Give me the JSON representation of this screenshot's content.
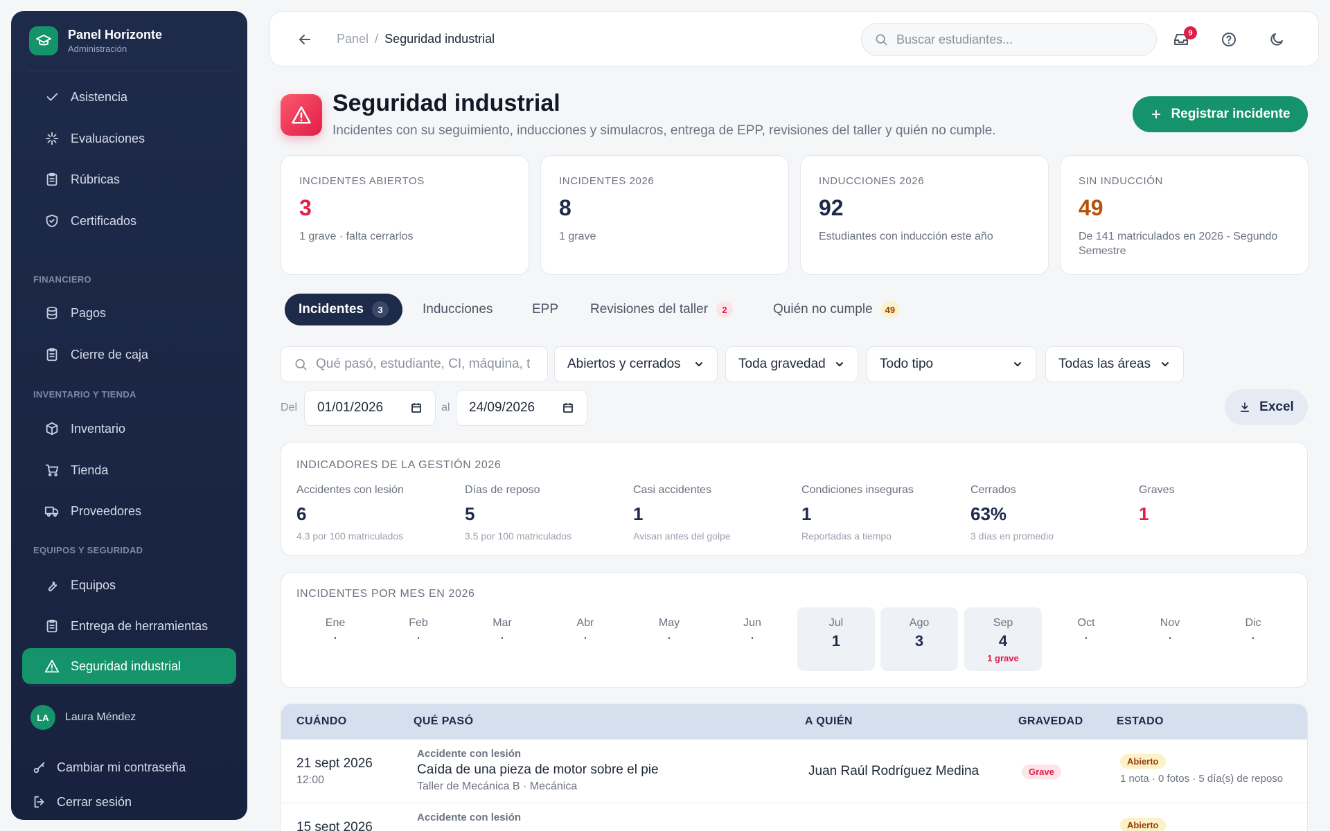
{
  "sidebar": {
    "brand_title": "Panel Horizonte",
    "brand_sub": "Administración",
    "items": [
      {
        "label": "Asistencia",
        "icon": "check-icon"
      },
      {
        "label": "Evaluaciones",
        "icon": "sparkle-icon"
      },
      {
        "label": "Rúbricas",
        "icon": "clipboard-icon"
      },
      {
        "label": "Certificados",
        "icon": "shield-check-icon"
      },
      {
        "label": "Pagos",
        "icon": "database-icon"
      },
      {
        "label": "Cierre de caja",
        "icon": "clipboard-icon"
      },
      {
        "label": "Inventario",
        "icon": "box-icon"
      },
      {
        "label": "Tienda",
        "icon": "cart-icon"
      },
      {
        "label": "Proveedores",
        "icon": "truck-icon"
      },
      {
        "label": "Equipos",
        "icon": "wrench-icon"
      },
      {
        "label": "Entrega de herramientas",
        "icon": "clipboard-icon"
      },
      {
        "label": "Seguridad industrial",
        "icon": "warning-icon"
      }
    ],
    "sections": [
      "FINANCIERO",
      "INVENTARIO Y TIENDA",
      "EQUIPOS Y SEGURIDAD"
    ],
    "user": {
      "initials": "LA",
      "name": "Laura Méndez"
    },
    "change_password": "Cambiar mi contraseña",
    "logout": "Cerrar sesión"
  },
  "topbar": {
    "breadcrumb_parent": "Panel",
    "breadcrumb_sep": "/",
    "breadcrumb_current": "Seguridad industrial",
    "search_placeholder": "Buscar estudiantes...",
    "notifications": "9"
  },
  "header": {
    "title": "Seguridad industrial",
    "subtitle": "Incidentes con su seguimiento, inducciones y simulacros, entrega de EPP, revisiones del taller y quién no cumple.",
    "primary_button": "Registrar incidente"
  },
  "stats": [
    {
      "label": "INCIDENTES ABIERTOS",
      "value": "3",
      "note": "1 grave · falta cerrarlos",
      "color": "#e11d48"
    },
    {
      "label": "INCIDENTES 2026",
      "value": "8",
      "note": "1 grave",
      "color": "#1e2a4a"
    },
    {
      "label": "INDUCCIONES 2026",
      "value": "92",
      "note": "Estudiantes con inducción este año",
      "color": "#1e2a4a"
    },
    {
      "label": "SIN INDUCCIÓN",
      "value": "49",
      "note": "De 141 matriculados en 2026 - Segundo Semestre",
      "color": "#b45309"
    }
  ],
  "tabs": [
    {
      "label": "Incidentes",
      "count": "3"
    },
    {
      "label": "Inducciones",
      "count": ""
    },
    {
      "label": "EPP",
      "count": ""
    },
    {
      "label": "Revisiones del taller",
      "count": "2"
    },
    {
      "label": "Quién no cumple",
      "count": "49"
    }
  ],
  "filters": {
    "search_placeholder": "Qué pasó, estudiante, CI, máquina, t",
    "status": "Abiertos y cerrados",
    "severity": "Toda gravedad",
    "type": "Todo tipo",
    "area": "Todas las áreas",
    "from_label": "Del",
    "from_date": "01/01/2026",
    "to_label": "al",
    "to_date": "24/09/2026",
    "export": "Excel"
  },
  "indicators": {
    "title": "INDICADORES DE LA GESTIÓN 2026",
    "items": [
      {
        "label": "Accidentes con lesión",
        "value": "6",
        "note": "4.3 por 100 matriculados"
      },
      {
        "label": "Días de reposo",
        "value": "5",
        "note": "3.5 por 100 matriculados"
      },
      {
        "label": "Casi accidentes",
        "value": "1",
        "note": "Avisan antes del golpe"
      },
      {
        "label": "Condiciones inseguras",
        "value": "1",
        "note": "Reportadas a tiempo"
      },
      {
        "label": "Cerrados",
        "value": "63%",
        "note": "3 días en promedio"
      },
      {
        "label": "Graves",
        "value": "1",
        "note": ""
      }
    ]
  },
  "monthly": {
    "title": "INCIDENTES POR MES EN 2026",
    "months": [
      {
        "name": "Ene",
        "value": "·",
        "note": ""
      },
      {
        "name": "Feb",
        "value": "·",
        "note": ""
      },
      {
        "name": "Mar",
        "value": "·",
        "note": ""
      },
      {
        "name": "Abr",
        "value": "·",
        "note": ""
      },
      {
        "name": "May",
        "value": "·",
        "note": ""
      },
      {
        "name": "Jun",
        "value": "·",
        "note": ""
      },
      {
        "name": "Jul",
        "value": "1",
        "note": ""
      },
      {
        "name": "Ago",
        "value": "3",
        "note": ""
      },
      {
        "name": "Sep",
        "value": "4",
        "note": "1 grave"
      },
      {
        "name": "Oct",
        "value": "·",
        "note": ""
      },
      {
        "name": "Nov",
        "value": "·",
        "note": ""
      },
      {
        "name": "Dic",
        "value": "·",
        "note": ""
      }
    ]
  },
  "table": {
    "headers": [
      "CUÁNDO",
      "QUÉ PASÓ",
      "A QUIÉN",
      "GRAVEDAD",
      "ESTADO"
    ],
    "rows": [
      {
        "date": "21 sept 2026",
        "time": "12:00",
        "type": "Accidente con lesión",
        "description": "Caída de una pieza de motor sobre el pie",
        "area": "Taller de Mecánica B · Mecánica",
        "person": "Juan Raúl Rodríguez Medina",
        "severity": "Grave",
        "status": "Abierto",
        "status_note": "1 nota · 0 fotos · 5 día(s) de reposo"
      },
      {
        "date": "15 sept 2026",
        "time": "",
        "type": "Accidente con lesión",
        "description": "",
        "area": "",
        "person": "",
        "severity": "",
        "status": "Abierto",
        "status_note": ""
      }
    ]
  },
  "colors": {
    "sidebar": "#1e2a4a",
    "accent": "#15936a",
    "danger": "#e11d48",
    "warning": "#b45309"
  }
}
